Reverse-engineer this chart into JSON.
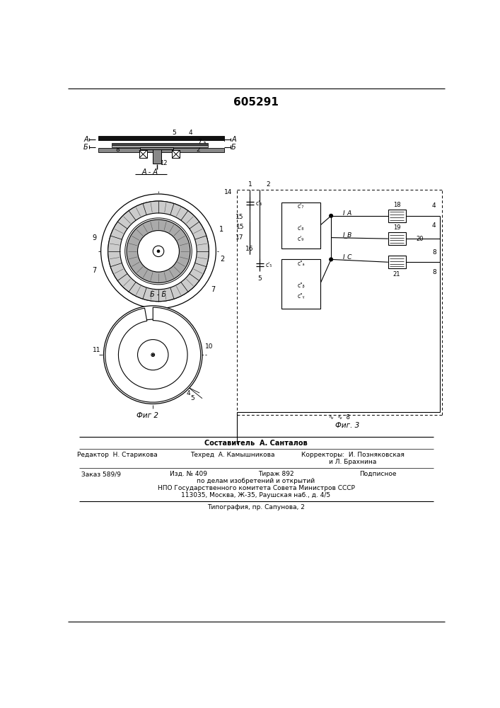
{
  "title": "605291",
  "bg_color": "#ffffff",
  "footer": {
    "составитель": "Составитель  А. Санталов",
    "редактор": "Редактор  Н. Старикова",
    "техред": "Техред  А. Камышникова",
    "корректоры": "Корректоры:  И. Позняковская",
    "и_л": "и Л. Брахнина",
    "заказ": "Заказ 589/9",
    "изд": "Изд. № 409",
    "тираж": "Тираж 892",
    "подписное": "Подписное",
    "по_делам": "по делам изобретений и открытий",
    "нпо": "НПО Государственного комитета Совета Министров СССР",
    "адрес": "113035, Москва, Ж-35, Раушская наб., д. 4/5",
    "типография": "Типография, пр. Сапунова, 2"
  }
}
